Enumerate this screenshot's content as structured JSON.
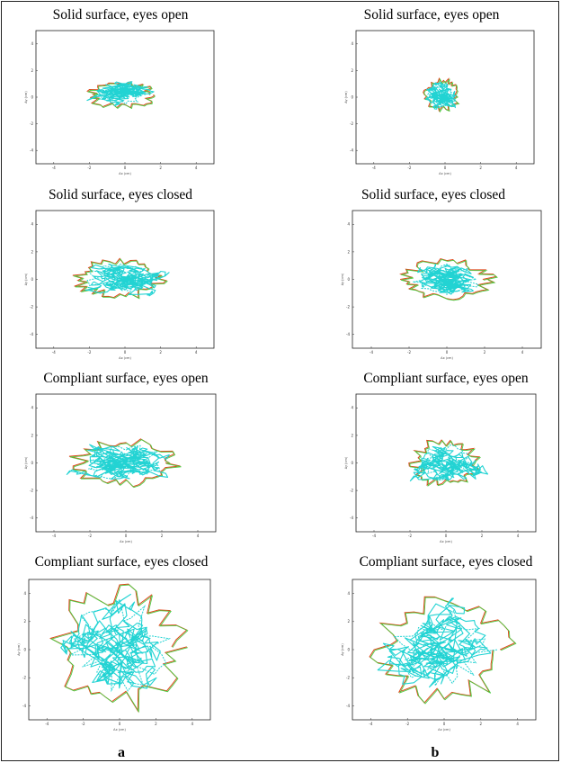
{
  "columns": [
    {
      "letter": "a"
    },
    {
      "letter": "b"
    }
  ],
  "colors": {
    "trace_primary": "#22d3d3",
    "trace_secondary": "#4ccc44",
    "envelope": "#e0451a",
    "axis": "#333333",
    "frame": "#222222"
  },
  "chart_data": [
    {
      "type": "line",
      "panel": "a1",
      "title": "Solid surface, eyes open",
      "xlabel": "Ax (cm)",
      "ylabel": "Ay (cm)",
      "xlim": [
        -5,
        5
      ],
      "ylim": [
        -5,
        5
      ],
      "xticks": [
        "-4",
        "-2",
        "0",
        "2",
        "4"
      ],
      "yticks": [
        "4",
        "2",
        "0",
        "-2",
        "-4"
      ],
      "spread": [
        1.8,
        0.9
      ],
      "center": [
        -0.2,
        0.2
      ],
      "seed": 11
    },
    {
      "type": "line",
      "panel": "b1",
      "title": "Solid surface, eyes open",
      "xlabel": "Ax (cm)",
      "ylabel": "Ay (cm)",
      "xlim": [
        -5,
        5
      ],
      "ylim": [
        -5,
        5
      ],
      "xticks": [
        "-4",
        "-2",
        "0",
        "2",
        "4"
      ],
      "yticks": [
        "4",
        "2",
        "0",
        "-2",
        "-4"
      ],
      "spread": [
        0.9,
        1.1
      ],
      "center": [
        -0.2,
        0.2
      ],
      "seed": 23
    },
    {
      "type": "line",
      "panel": "a2",
      "title": "Solid surface, eyes closed",
      "xlabel": "Ax (cm)",
      "ylabel": "Ay (cm)",
      "xlim": [
        -5,
        5
      ],
      "ylim": [
        -5,
        5
      ],
      "xticks": [
        "-4",
        "-2",
        "0",
        "2",
        "4"
      ],
      "yticks": [
        "4",
        "2",
        "0",
        "-2",
        "-4"
      ],
      "spread": [
        2.3,
        1.3
      ],
      "center": [
        -0.3,
        0.1
      ],
      "seed": 37
    },
    {
      "type": "line",
      "panel": "b2",
      "title": "Solid surface, eyes closed",
      "xlabel": "Ax (cm)",
      "ylabel": "Ay (cm)",
      "xlim": [
        -5,
        5
      ],
      "ylim": [
        -5,
        5
      ],
      "xticks": [
        "-4",
        "-2",
        "0",
        "2",
        "4"
      ],
      "yticks": [
        "4",
        "2",
        "0",
        "-2",
        "-4"
      ],
      "spread": [
        2.2,
        1.3
      ],
      "center": [
        0.0,
        0.0
      ],
      "seed": 41
    },
    {
      "type": "line",
      "panel": "a3",
      "title": "Compliant surface, eyes open",
      "xlabel": "Ax (cm)",
      "ylabel": "Ay (cm)",
      "xlim": [
        -5,
        5
      ],
      "ylim": [
        -5,
        5
      ],
      "xticks": [
        "-4",
        "-2",
        "0",
        "2",
        "4"
      ],
      "yticks": [
        "4",
        "2",
        "0",
        "-2",
        "-4"
      ],
      "spread": [
        2.8,
        1.6
      ],
      "center": [
        0.0,
        0.0
      ],
      "seed": 53
    },
    {
      "type": "line",
      "panel": "b3",
      "title": "Compliant surface, eyes open",
      "xlabel": "Ax (cm)",
      "ylabel": "Ay (cm)",
      "xlim": [
        -5,
        5
      ],
      "ylim": [
        -5,
        5
      ],
      "xticks": [
        "-4",
        "-2",
        "0",
        "2",
        "4"
      ],
      "yticks": [
        "4",
        "2",
        "0",
        "-2",
        "-4"
      ],
      "spread": [
        1.8,
        1.6
      ],
      "center": [
        0.0,
        0.0
      ],
      "seed": 67
    },
    {
      "type": "line",
      "panel": "a4",
      "title": "Compliant surface, eyes closed",
      "xlabel": "Ax (cm)",
      "ylabel": "Ay (cm)",
      "xlim": [
        -5,
        5
      ],
      "ylim": [
        -5,
        5
      ],
      "xticks": [
        "-4",
        "-2",
        "0",
        "2",
        "4"
      ],
      "yticks": [
        "4",
        "2",
        "0",
        "-2",
        "-4"
      ],
      "spread": [
        3.3,
        4.0
      ],
      "center": [
        0.0,
        0.2
      ],
      "seed": 79
    },
    {
      "type": "line",
      "panel": "b4",
      "title": "Compliant surface, eyes closed",
      "xlabel": "Ax (cm)",
      "ylabel": "Ay (cm)",
      "xlim": [
        -5,
        5
      ],
      "ylim": [
        -5,
        5
      ],
      "xticks": [
        "-4",
        "-2",
        "0",
        "2",
        "4"
      ],
      "yticks": [
        "4",
        "2",
        "0",
        "-2",
        "-4"
      ],
      "spread": [
        3.5,
        3.3
      ],
      "center": [
        0.0,
        0.0
      ],
      "seed": 83
    }
  ]
}
